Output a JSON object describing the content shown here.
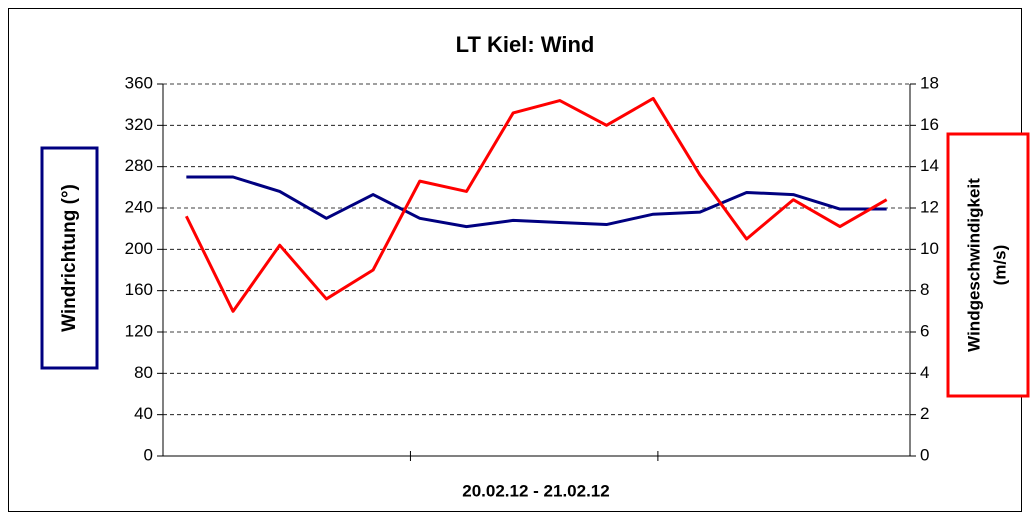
{
  "chart_data": {
    "type": "line",
    "title": "LT Kiel:  Wind",
    "xlabel": "20.02.12 - 21.02.12",
    "ylabel": "Windrichtung (°)",
    "y2label": [
      "Windgeschwindigkeit",
      "(m/s)"
    ],
    "categories": [
      null,
      null,
      null,
      null,
      null,
      null,
      null,
      null,
      null,
      null,
      null,
      null,
      null,
      null,
      null,
      null
    ],
    "series": [
      {
        "color": "#000080",
        "axis": "y",
        "values": [
          270,
          270,
          256,
          230,
          253,
          230,
          222,
          228,
          226,
          224,
          234,
          236,
          255,
          253,
          239,
          239
        ]
      },
      {
        "color": "#ff0000",
        "axis": "y2",
        "values": [
          11.6,
          7.0,
          10.2,
          7.6,
          9.0,
          13.3,
          12.8,
          16.6,
          17.2,
          16.0,
          17.3,
          13.6,
          10.5,
          12.4,
          11.1,
          12.4
        ]
      }
    ],
    "ylim": [
      0,
      360
    ],
    "yticks": [
      0,
      40,
      80,
      120,
      160,
      200,
      240,
      280,
      320,
      360
    ],
    "y2lim": [
      0,
      18
    ],
    "y2ticks": [
      0,
      2,
      4,
      6,
      8,
      10,
      12,
      14,
      16,
      18
    ],
    "grid": true
  }
}
